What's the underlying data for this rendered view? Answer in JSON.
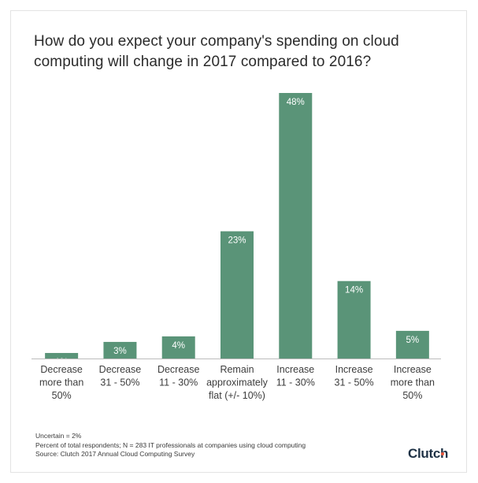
{
  "title": "How do you expect your company's spending on cloud computing will change in 2017 compared to 2016?",
  "chart_data": {
    "type": "bar",
    "title": "How do you expect your company's spending on cloud computing will change in 2017 compared to 2016?",
    "categories": [
      [
        "Decrease",
        "more than",
        "50%"
      ],
      [
        "Decrease",
        "31 - 50%"
      ],
      [
        "Decrease",
        "11 - 30%"
      ],
      [
        "Remain",
        "approximately",
        "flat (+/- 10%)"
      ],
      [
        "Increase",
        "11 - 30%"
      ],
      [
        "Increase",
        "31 - 50%"
      ],
      [
        "Increase",
        "more than",
        "50%"
      ]
    ],
    "values": [
      1,
      3,
      4,
      23,
      48,
      14,
      5
    ],
    "data_labels": [
      "1%",
      "3%",
      "4%",
      "23%",
      "48%",
      "14%",
      "5%"
    ],
    "ylim": [
      0,
      48
    ],
    "grid": false,
    "bar_color": "#5a9478",
    "label_color": "#ffffff",
    "axis_color": "#bbbbbb"
  },
  "footer": {
    "uncertain": "Uncertain = 2%",
    "note": "Percent of total respondents; N = 283 IT professionals at companies using cloud computing",
    "source": "Source: Clutch 2017 Annual Cloud Computing Survey"
  },
  "logo": {
    "text": "Clutch",
    "text_color": "#1f3246",
    "dot_color": "#e5553a"
  }
}
